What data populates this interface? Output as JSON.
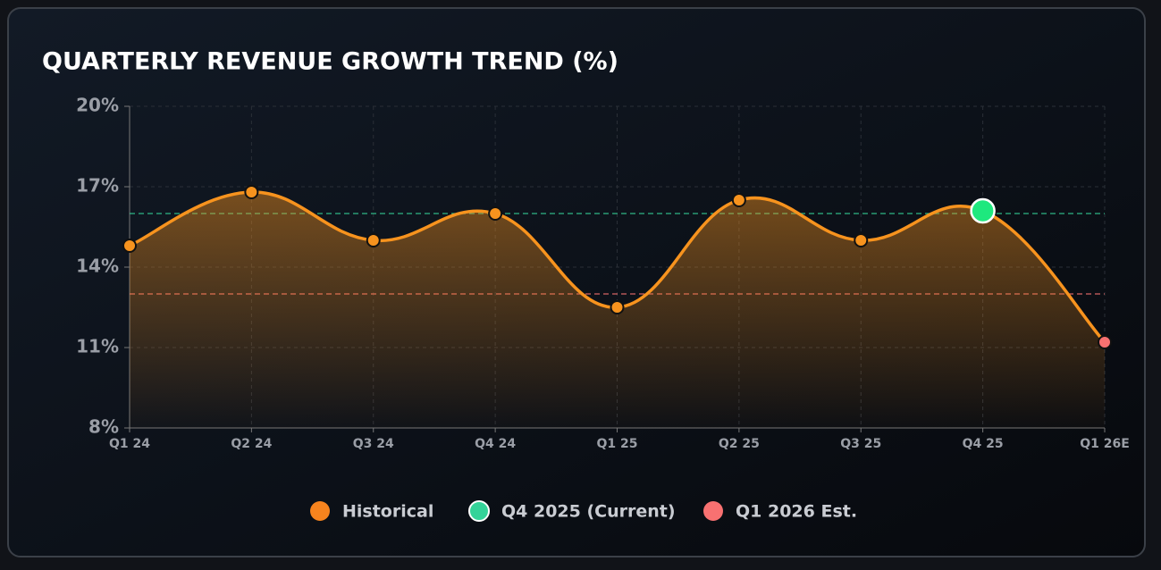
{
  "chart_data": {
    "type": "line",
    "title": "QUARTERLY REVENUE GROWTH TREND (%)",
    "categories": [
      "Q1 24",
      "Q2 24",
      "Q3 24",
      "Q4 24",
      "Q1 25",
      "Q2 25",
      "Q3 25",
      "Q4 25",
      "Q1 26E"
    ],
    "series": [
      {
        "name": "Historical",
        "color": "#f7931e",
        "values": [
          14.8,
          16.8,
          15.0,
          16.0,
          12.5,
          16.5,
          15.0,
          16.1,
          11.2
        ]
      }
    ],
    "point_colors": [
      "#f7931e",
      "#f7931e",
      "#f7931e",
      "#f7931e",
      "#f7931e",
      "#f7931e",
      "#f7931e",
      "#1ee87e",
      "#f87171"
    ],
    "legend": [
      {
        "name": "Historical",
        "color": "#f7841e"
      },
      {
        "name": "Q4 2025 (Current)",
        "color": "#34d399"
      },
      {
        "name": "Q1 2026 Est.",
        "color": "#f87171"
      }
    ],
    "reference_lines": [
      {
        "value": 16,
        "color": "#34d399"
      },
      {
        "value": 13,
        "color": "#f87171"
      }
    ],
    "ylim": [
      8,
      20
    ],
    "yticks": [
      {
        "value": 8,
        "label": "8%"
      },
      {
        "value": 11,
        "label": "11%"
      },
      {
        "value": 14,
        "label": "14%"
      },
      {
        "value": 17,
        "label": "17%"
      },
      {
        "value": 20,
        "label": "20%"
      }
    ],
    "grid": true
  }
}
